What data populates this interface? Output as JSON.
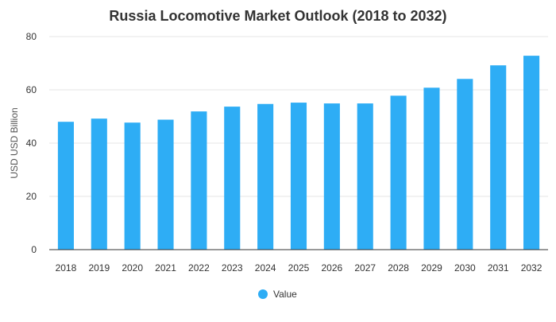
{
  "chart_data": {
    "type": "bar",
    "title": "Russia Locomotive Market Outlook (2018 to 2032)",
    "xlabel": "",
    "ylabel": "USD USD Billion",
    "categories": [
      "2018",
      "2019",
      "2020",
      "2021",
      "2022",
      "2023",
      "2024",
      "2025",
      "2026",
      "2027",
      "2028",
      "2029",
      "2030",
      "2031",
      "2032"
    ],
    "series": [
      {
        "name": "Value",
        "values": [
          48.0,
          49.2,
          47.7,
          48.8,
          51.9,
          53.7,
          54.7,
          55.2,
          54.9,
          54.9,
          57.8,
          60.8,
          64.1,
          69.2,
          72.8
        ]
      }
    ],
    "ylim": [
      0,
      80
    ],
    "yticks": [
      0,
      20,
      40,
      60,
      80
    ],
    "grid": true,
    "legend_position": "bottom",
    "colors": {
      "bar": "#2eadf5",
      "grid": "#e6e6e6",
      "axis": "#333333"
    }
  }
}
